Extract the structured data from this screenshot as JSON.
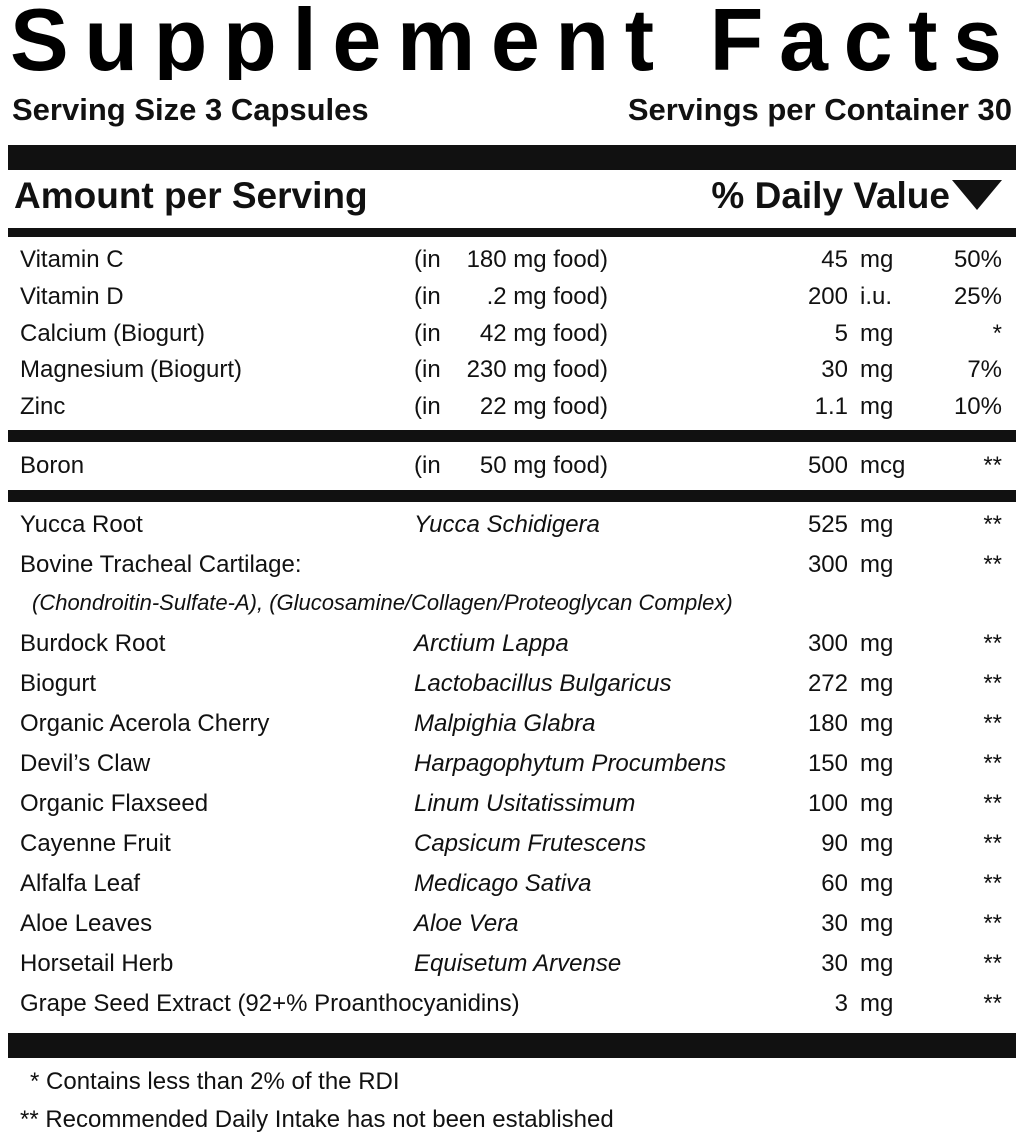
{
  "title": "Supplement Facts",
  "serving_size": "Serving Size 3 Capsules",
  "servings_per_container": "Servings per Container 30",
  "header": {
    "amount": "Amount per Serving",
    "daily_value": "% Daily Value"
  },
  "sections": [
    {
      "rows": [
        {
          "name": "Vitamin C",
          "food_prefix": "(in",
          "food": "180 mg food)",
          "amount": "45",
          "unit": "mg",
          "dv": "50%"
        },
        {
          "name": "Vitamin D",
          "food_prefix": "(in",
          "food": ".2 mg food)",
          "amount": "200",
          "unit": "i.u.",
          "dv": "25%"
        },
        {
          "name": "Calcium",
          "note": "(Biogurt)",
          "food_prefix": "(in",
          "food": "42 mg food)",
          "amount": "5",
          "unit": "mg",
          "dv": "*"
        },
        {
          "name": "Magnesium",
          "note": "(Biogurt)",
          "food_prefix": "(in",
          "food": "230 mg food)",
          "amount": "30",
          "unit": "mg",
          "dv": "7%"
        },
        {
          "name": "Zinc",
          "food_prefix": "(in",
          "food": "22 mg food)",
          "amount": "1.1",
          "unit": "mg",
          "dv": "10%"
        }
      ]
    },
    {
      "rows": [
        {
          "name": "Boron",
          "food_prefix": "(in",
          "food": "50 mg food)",
          "amount": "500",
          "unit": "mcg",
          "dv": "**"
        }
      ]
    },
    {
      "rows": [
        {
          "name": "Yucca Root",
          "source": "Yucca Schidigera",
          "amount": "525",
          "unit": "mg",
          "dv": "**"
        },
        {
          "name": "Bovine Tracheal Cartilage:",
          "amount": "300",
          "unit": "mg",
          "dv": "**",
          "subnote": "(Chondroitin-Sulfate-A), (Glucosamine/Collagen/Proteoglycan Complex)"
        },
        {
          "name": "Burdock Root",
          "source": "Arctium Lappa",
          "amount": "300",
          "unit": "mg",
          "dv": "**"
        },
        {
          "name": "Biogurt",
          "source": "Lactobacillus Bulgaricus",
          "amount": "272",
          "unit": "mg",
          "dv": "**"
        },
        {
          "name": "Organic Acerola Cherry",
          "source": "Malpighia Glabra",
          "amount": "180",
          "unit": "mg",
          "dv": "**"
        },
        {
          "name": "Devil’s Claw",
          "source": "Harpagophytum Procumbens",
          "amount": "150",
          "unit": "mg",
          "dv": "**"
        },
        {
          "name": "Organic Flaxseed",
          "source": "Linum Usitatissimum",
          "amount": "100",
          "unit": "mg",
          "dv": "**"
        },
        {
          "name": "Cayenne Fruit",
          "source": "Capsicum Frutescens",
          "amount": "90",
          "unit": "mg",
          "dv": "**"
        },
        {
          "name": "Alfalfa Leaf",
          "source": "Medicago Sativa",
          "amount": "60",
          "unit": "mg",
          "dv": "**"
        },
        {
          "name": "Aloe Leaves",
          "source": "Aloe Vera",
          "amount": "30",
          "unit": "mg",
          "dv": "**"
        },
        {
          "name": "Horsetail Herb",
          "source": "Equisetum Arvense",
          "amount": "30",
          "unit": "mg",
          "dv": "**"
        },
        {
          "name": "Grape Seed Extract (92+% Proanthocyanidins)",
          "amount": "3",
          "unit": "mg",
          "dv": "**"
        }
      ]
    }
  ],
  "footnotes": [
    "* Contains less than 2% of the RDI",
    "** Recommended Daily Intake has not been established"
  ]
}
